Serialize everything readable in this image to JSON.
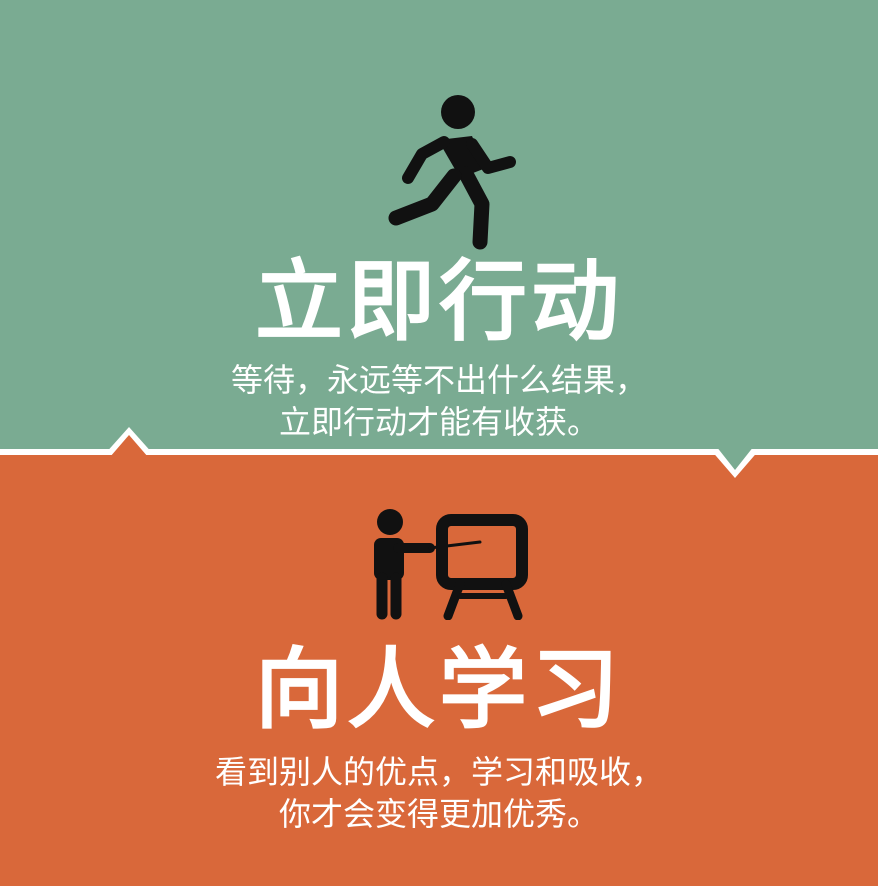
{
  "colors": {
    "top_background": "#7aab92",
    "bottom_background": "#d9683a",
    "divider": "#ffffff",
    "text": "#ffffff",
    "icon": "#111111"
  },
  "section_action": {
    "icon": "running-person-icon",
    "title": "立即行动",
    "line1": "等待，永远等不出什么结果，",
    "line2": "立即行动才能有收获。"
  },
  "section_learn": {
    "icon": "person-teaching-board-icon",
    "title": "向人学习",
    "line1": "看到别人的优点，学习和吸收，",
    "line2": "你才会变得更加优秀。"
  }
}
